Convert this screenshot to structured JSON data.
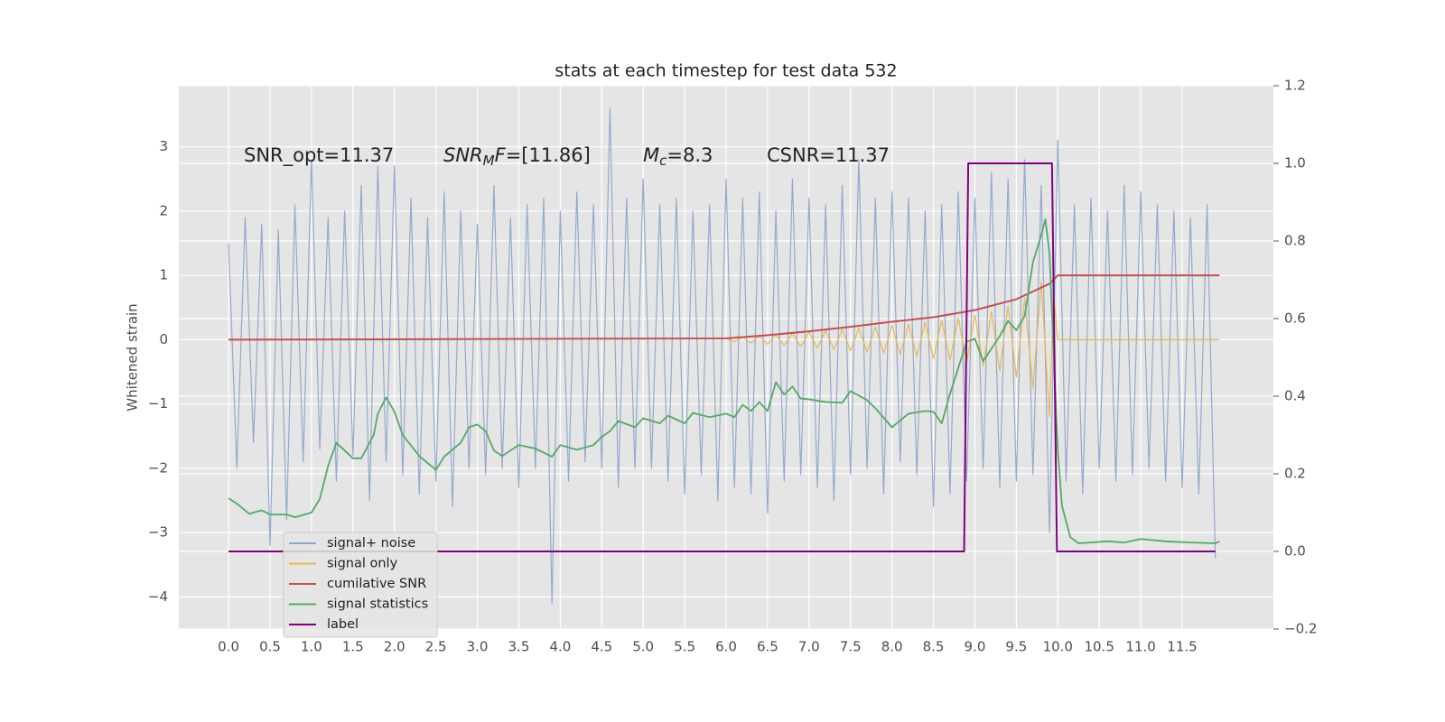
{
  "chart_data": {
    "type": "line",
    "title": "stats at each timestep for test data 532",
    "ylabel": "Whitened strain",
    "xlim": [
      -0.6,
      12.6
    ],
    "ylim": [
      -4.5,
      3.95
    ],
    "y2lim": [
      -0.2,
      1.2
    ],
    "grid": true,
    "legend": "lower left",
    "xticks": [
      {
        "value": 0,
        "label": "0.0"
      },
      0.5,
      {
        "value": 1,
        "label": "1.0"
      },
      1.5,
      {
        "value": 2,
        "label": "2.0"
      },
      2.5,
      {
        "value": 3,
        "label": "3.0"
      },
      3.5,
      {
        "value": 4,
        "label": "4.0"
      },
      4.5,
      {
        "value": 5,
        "label": "5.0"
      },
      5.5,
      {
        "value": 6,
        "label": "6.0"
      },
      6.5,
      {
        "value": 7,
        "label": "7.0"
      },
      7.5,
      {
        "value": 8,
        "label": "8.0"
      },
      8.5,
      {
        "value": 9,
        "label": "9.0"
      },
      9.5,
      {
        "value": 10,
        "label": "10.0"
      },
      10.5,
      {
        "value": 11,
        "label": "11.0"
      },
      11.5
    ],
    "yticks": [
      {
        "value": -4,
        "label": "−4"
      },
      {
        "value": -3,
        "label": "−3"
      },
      {
        "value": -2,
        "label": "−2"
      },
      {
        "value": -1,
        "label": "−1"
      },
      0,
      1,
      2,
      3
    ],
    "y2ticks": [
      {
        "value": -0.2,
        "label": "−0.2"
      },
      {
        "value": 0,
        "label": "0.0"
      },
      0.2,
      0.4,
      0.6,
      0.8,
      {
        "value": 1,
        "label": "1.0"
      },
      1.2
    ],
    "annotations": [
      [
        {
          "text": "SNR_opt=11.37"
        }
      ],
      [
        {
          "text": "SNR",
          "style": "italic"
        },
        {
          "text": "M",
          "style": "sub"
        },
        {
          "text": "F",
          "style": "italic"
        },
        {
          "text": "=[11.86]"
        }
      ],
      [
        {
          "text": "M",
          "style": "italic"
        },
        {
          "text": "c",
          "style": "sub"
        },
        {
          "text": "=8.3"
        }
      ],
      [
        {
          "text": "CSNR=11.37"
        }
      ]
    ],
    "series": [
      {
        "name": "signal+ noise",
        "color": "#8fa5cc",
        "x": [
          0.0,
          0.1,
          0.2,
          0.3,
          0.4,
          0.5,
          0.6,
          0.7,
          0.8,
          0.9,
          1.0,
          1.1,
          1.2,
          1.3,
          1.4,
          1.5,
          1.6,
          1.7,
          1.8,
          1.9,
          2.0,
          2.1,
          2.2,
          2.3,
          2.4,
          2.5,
          2.6,
          2.7,
          2.8,
          2.9,
          3.0,
          3.1,
          3.2,
          3.3,
          3.4,
          3.5,
          3.6,
          3.7,
          3.8,
          3.9,
          4.0,
          4.1,
          4.2,
          4.3,
          4.4,
          4.5,
          4.6,
          4.7,
          4.8,
          4.9,
          5.0,
          5.1,
          5.2,
          5.3,
          5.4,
          5.5,
          5.6,
          5.7,
          5.8,
          5.9,
          6.0,
          6.1,
          6.2,
          6.3,
          6.4,
          6.5,
          6.6,
          6.7,
          6.8,
          6.9,
          7.0,
          7.1,
          7.2,
          7.3,
          7.4,
          7.5,
          7.6,
          7.7,
          7.8,
          7.9,
          8.0,
          8.1,
          8.2,
          8.3,
          8.4,
          8.5,
          8.6,
          8.7,
          8.8,
          8.9,
          9.0,
          9.1,
          9.2,
          9.3,
          9.4,
          9.5,
          9.6,
          9.7,
          9.8,
          9.9,
          10.0,
          10.1,
          10.2,
          10.3,
          10.4,
          10.5,
          10.6,
          10.7,
          10.8,
          10.9,
          11.0,
          11.1,
          11.2,
          11.3,
          11.4,
          11.5,
          11.6,
          11.7,
          11.8,
          11.9
        ],
        "values": [
          1.5,
          -2.0,
          1.9,
          -1.6,
          1.8,
          -3.2,
          1.7,
          -2.8,
          2.1,
          -1.9,
          2.8,
          -1.7,
          1.9,
          -2.2,
          2.0,
          -1.8,
          2.4,
          -2.5,
          2.7,
          -1.9,
          2.7,
          -2.1,
          2.2,
          -2.4,
          1.9,
          -2.2,
          2.3,
          -2.6,
          2.0,
          -2.0,
          1.8,
          -2.1,
          2.4,
          -2.0,
          1.9,
          -2.3,
          2.1,
          -2.0,
          2.2,
          -4.1,
          2.0,
          -2.2,
          2.3,
          -1.9,
          2.1,
          -2.0,
          3.6,
          -2.3,
          2.2,
          -2.0,
          2.5,
          -2.0,
          2.1,
          -2.2,
          2.2,
          -2.4,
          2.0,
          -2.1,
          2.1,
          -2.5,
          2.5,
          -2.3,
          2.2,
          -2.4,
          2.3,
          -2.7,
          2.0,
          -2.2,
          2.5,
          -2.1,
          2.2,
          -2.3,
          2.1,
          -2.5,
          2.4,
          -2.1,
          2.8,
          -2.0,
          2.2,
          -2.4,
          2.3,
          -1.9,
          2.2,
          -2.1,
          2.0,
          -2.6,
          2.1,
          -2.4,
          2.3,
          -2.2,
          2.2,
          -2.0,
          2.6,
          -2.3,
          2.5,
          -2.2,
          2.8,
          -2.1,
          2.4,
          -3.0,
          3.1,
          -2.2,
          2.1,
          -2.4,
          2.2,
          -2.0,
          2.0,
          -2.2,
          2.4,
          -2.1,
          2.3,
          -2.0,
          2.1,
          -2.2,
          2.0,
          -2.3,
          1.9,
          -2.4,
          2.1,
          -3.4
        ]
      },
      {
        "name": "signal only",
        "color": "#e9b650",
        "x": [
          0.0,
          6.0,
          6.1,
          6.2,
          6.3,
          6.4,
          6.5,
          6.6,
          6.7,
          6.8,
          6.9,
          7.0,
          7.1,
          7.2,
          7.3,
          7.4,
          7.5,
          7.6,
          7.7,
          7.8,
          7.9,
          8.0,
          8.1,
          8.2,
          8.3,
          8.4,
          8.5,
          8.6,
          8.7,
          8.8,
          8.9,
          9.0,
          9.1,
          9.2,
          9.3,
          9.4,
          9.5,
          9.6,
          9.7,
          9.8,
          9.9,
          9.95,
          10.0,
          11.95
        ],
        "values": [
          0,
          0.02,
          -0.03,
          0.04,
          -0.05,
          0.06,
          -0.07,
          0.08,
          -0.09,
          0.1,
          -0.11,
          0.12,
          -0.13,
          0.14,
          -0.15,
          0.16,
          -0.17,
          0.18,
          -0.19,
          0.2,
          -0.21,
          0.22,
          -0.23,
          0.24,
          -0.26,
          0.27,
          -0.29,
          0.3,
          -0.32,
          0.34,
          -0.36,
          0.38,
          -0.41,
          0.44,
          -0.48,
          0.52,
          -0.58,
          0.65,
          -0.75,
          0.9,
          -1.2,
          0.7,
          0,
          0
        ]
      },
      {
        "name": "cumilative SNR",
        "color": "#c44e52",
        "x": [
          0.0,
          6.0,
          6.5,
          7.0,
          7.5,
          8.0,
          8.5,
          9.0,
          9.5,
          9.9,
          10.0,
          11.95
        ],
        "values": [
          0,
          0.02,
          0.07,
          0.13,
          0.2,
          0.28,
          0.35,
          0.46,
          0.63,
          0.87,
          1.0,
          1.0
        ]
      },
      {
        "name": "signal statistics",
        "color": "#55a868",
        "axis": "y2",
        "x": [
          0.0,
          0.1,
          0.25,
          0.4,
          0.5,
          0.7,
          0.8,
          1.0,
          1.1,
          1.2,
          1.3,
          1.5,
          1.6,
          1.75,
          1.8,
          1.9,
          2.0,
          2.1,
          2.3,
          2.5,
          2.6,
          2.8,
          2.9,
          3.0,
          3.1,
          3.2,
          3.3,
          3.5,
          3.7,
          3.9,
          4.0,
          4.2,
          4.4,
          4.5,
          4.6,
          4.7,
          4.9,
          5.0,
          5.2,
          5.3,
          5.5,
          5.6,
          5.8,
          6.0,
          6.1,
          6.2,
          6.3,
          6.4,
          6.5,
          6.6,
          6.7,
          6.8,
          6.9,
          7.0,
          7.2,
          7.4,
          7.5,
          7.7,
          7.8,
          8.0,
          8.2,
          8.4,
          8.5,
          8.6,
          8.7,
          8.9,
          9.0,
          9.1,
          9.3,
          9.4,
          9.5,
          9.6,
          9.7,
          9.8,
          9.85,
          9.9,
          10.0,
          10.05,
          10.15,
          10.25,
          10.6,
          10.8,
          11.0,
          11.3,
          11.6,
          11.9,
          11.95
        ],
        "values": [
          0.137,
          0.123,
          0.097,
          0.106,
          0.095,
          0.095,
          0.088,
          0.1,
          0.135,
          0.22,
          0.28,
          0.24,
          0.24,
          0.3,
          0.355,
          0.397,
          0.36,
          0.3,
          0.246,
          0.21,
          0.244,
          0.28,
          0.32,
          0.327,
          0.31,
          0.26,
          0.246,
          0.274,
          0.265,
          0.244,
          0.274,
          0.262,
          0.274,
          0.295,
          0.31,
          0.336,
          0.32,
          0.343,
          0.33,
          0.35,
          0.33,
          0.357,
          0.346,
          0.355,
          0.346,
          0.378,
          0.362,
          0.385,
          0.362,
          0.436,
          0.404,
          0.425,
          0.394,
          0.392,
          0.385,
          0.383,
          0.413,
          0.39,
          0.369,
          0.32,
          0.355,
          0.362,
          0.36,
          0.33,
          0.406,
          0.54,
          0.548,
          0.49,
          0.555,
          0.594,
          0.57,
          0.606,
          0.745,
          0.815,
          0.856,
          0.768,
          0.258,
          0.118,
          0.037,
          0.021,
          0.026,
          0.023,
          0.032,
          0.026,
          0.023,
          0.021,
          0.026
        ]
      },
      {
        "name": "label",
        "color": "#800080",
        "axis": "y2",
        "x": [
          0.0,
          8.87,
          8.92,
          9.93,
          9.99,
          11.9
        ],
        "values": [
          0,
          0,
          1,
          1,
          0,
          0
        ]
      }
    ]
  }
}
